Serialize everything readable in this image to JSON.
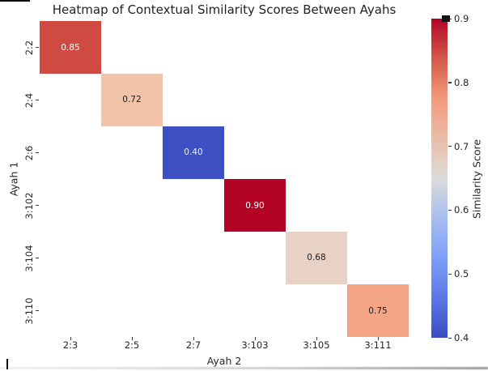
{
  "title": "Heatmap of Contextual Similarity Scores Between Ayahs",
  "chart_data": {
    "type": "heatmap",
    "title": "Heatmap of Contextual Similarity Scores Between Ayahs",
    "xlabel": "Ayah 2",
    "ylabel": "Ayah 1",
    "x_tick_labels": [
      "2:3",
      "2:5",
      "2:7",
      "3:103",
      "3:105",
      "3:111"
    ],
    "y_tick_labels": [
      "2:2",
      "2:4",
      "2:6",
      "3:102",
      "3:104",
      "3:110"
    ],
    "colormap": "coolwarm",
    "vmin": 0.4,
    "vmax": 0.9,
    "empty_color": "#ffffff",
    "cells": [
      {
        "row": 0,
        "col": 0,
        "y": "2:2",
        "x": "2:3",
        "value": 0.85,
        "label": "0.85",
        "color": "#cf4a40",
        "text_color": "#ffffff"
      },
      {
        "row": 1,
        "col": 1,
        "y": "2:4",
        "x": "2:5",
        "value": 0.72,
        "label": "0.72",
        "color": "#f2c3a8",
        "text_color": "#1c1c1c"
      },
      {
        "row": 2,
        "col": 2,
        "y": "2:6",
        "x": "2:7",
        "value": 0.4,
        "label": "0.40",
        "color": "#3d50c3",
        "text_color": "#eef0fb"
      },
      {
        "row": 3,
        "col": 3,
        "y": "3:102",
        "x": "3:103",
        "value": 0.9,
        "label": "0.90",
        "color": "#b40426",
        "text_color": "#ffffff"
      },
      {
        "row": 4,
        "col": 4,
        "y": "3:104",
        "x": "3:105",
        "value": 0.68,
        "label": "0.68",
        "color": "#e7d2c5",
        "text_color": "#1c1c1c"
      },
      {
        "row": 5,
        "col": 5,
        "y": "3:110",
        "x": "3:111",
        "value": 0.75,
        "label": "0.75",
        "color": "#f3a585",
        "text_color": "#1c1c1c"
      }
    ],
    "colorbar": {
      "label": "Similarity Score",
      "tick_labels": [
        "0.9",
        "0.8",
        "0.7",
        "0.6",
        "0.5",
        "0.4"
      ],
      "gradient_stops_top_to_bottom": [
        "#b40426",
        "#d25847",
        "#f49a7b",
        "#e9bca7",
        "#dddcdb",
        "#a7bdf0",
        "#7c9ff9",
        "#5c78e6",
        "#3b4cc0"
      ]
    }
  }
}
